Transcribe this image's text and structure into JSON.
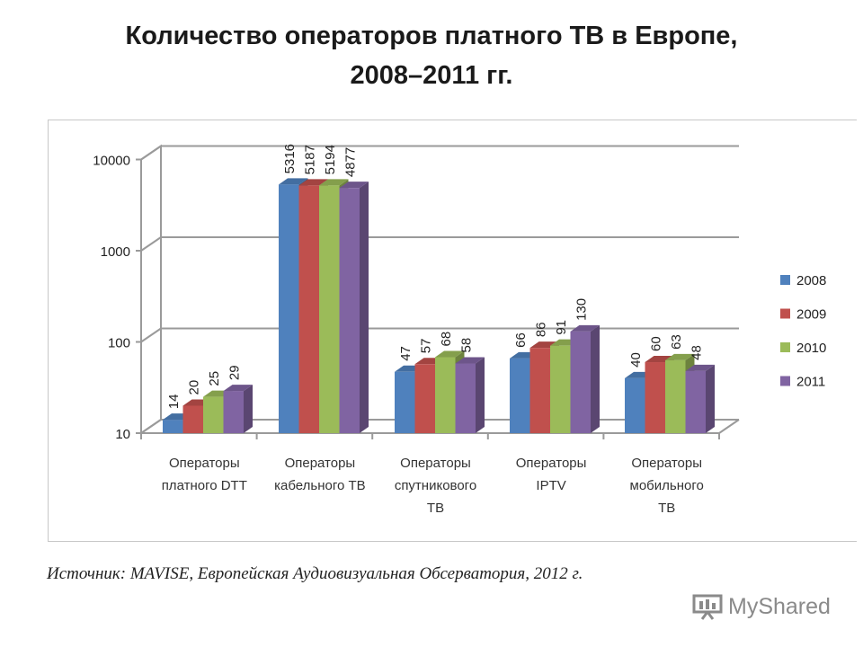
{
  "page": {
    "title_line1": "Количество операторов платного ТВ в Европе,",
    "title_line2": "2008–2011 гг.",
    "source": "Источник: MAVISE, Европейская Аудиовизуальная Обсерватория, 2012 г.",
    "watermark": "MyShared"
  },
  "chart_data": {
    "type": "bar",
    "yscale": "log",
    "ylim": [
      10,
      10000
    ],
    "yticks": [
      "10",
      "100",
      "1000",
      "10000"
    ],
    "grid": true,
    "legend_position": "right",
    "categories": [
      [
        "Операторы",
        "платного DTT"
      ],
      [
        "Операторы",
        "кабельного ТВ"
      ],
      [
        "Операторы",
        "спутникового",
        "ТВ"
      ],
      [
        "Операторы",
        "IPTV"
      ],
      [
        "Операторы",
        "мобильного",
        "ТВ"
      ]
    ],
    "series": [
      {
        "name": "2008",
        "color": "#4f81bd",
        "values": [
          14,
          5316,
          47,
          66,
          40
        ]
      },
      {
        "name": "2009",
        "color": "#c0504d",
        "values": [
          20,
          5187,
          57,
          86,
          60
        ]
      },
      {
        "name": "2010",
        "color": "#9bbb59",
        "values": [
          25,
          5194,
          68,
          91,
          63
        ]
      },
      {
        "name": "2011",
        "color": "#8064a2",
        "values": [
          29,
          4877,
          58,
          130,
          48
        ]
      }
    ]
  }
}
